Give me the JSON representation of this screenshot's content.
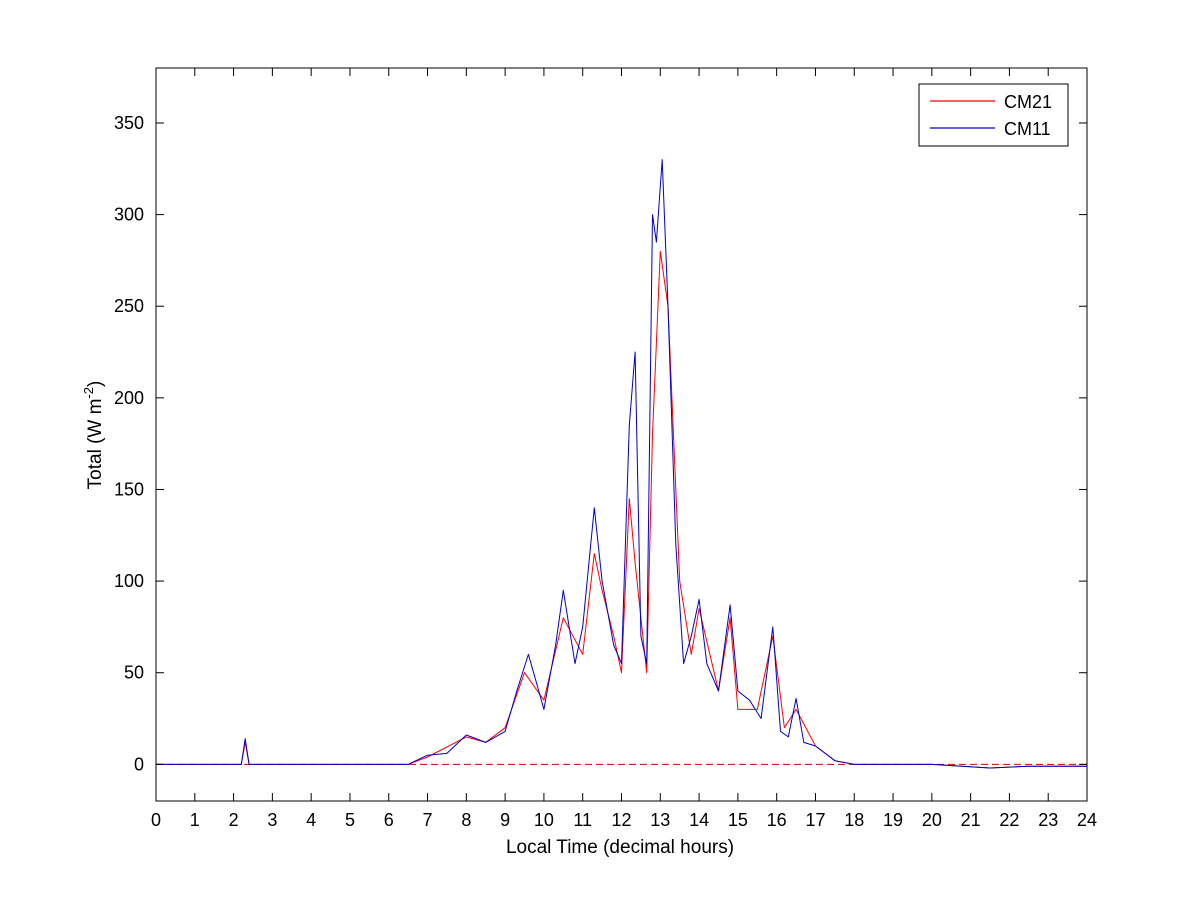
{
  "chart_data": {
    "type": "line",
    "xlabel": "Local Time (decimal hours)",
    "ylabel_main": "Total (W m",
    "ylabel_exp": "-2",
    "ylabel_tail": ")",
    "xlim": [
      0,
      24
    ],
    "ylim": [
      -20,
      380
    ],
    "xticks": [
      "0",
      "1",
      "2",
      "3",
      "4",
      "5",
      "6",
      "7",
      "8",
      "9",
      "10",
      "11",
      "12",
      "13",
      "14",
      "15",
      "16",
      "17",
      "18",
      "19",
      "20",
      "21",
      "22",
      "23",
      "24"
    ],
    "yticks": [
      "0",
      "50",
      "100",
      "150",
      "200",
      "250",
      "300",
      "350"
    ],
    "grid": false,
    "legend_position": "top-right",
    "reference_line": {
      "y": 0,
      "style": "dashed",
      "color": "#cc0000"
    },
    "series": [
      {
        "name": "CM21",
        "color": "#ff0000",
        "x": [
          0,
          2.2,
          2.3,
          2.4,
          6.5,
          7.0,
          8.0,
          8.5,
          9.0,
          9.5,
          10.0,
          10.5,
          11.0,
          11.3,
          11.5,
          11.8,
          12.0,
          12.2,
          12.35,
          12.5,
          12.65,
          12.8,
          13.0,
          13.2,
          13.5,
          13.8,
          14.0,
          14.5,
          14.8,
          15.0,
          15.5,
          15.9,
          16.2,
          16.5,
          17.0,
          17.5,
          18.0,
          20.0,
          21.5,
          22.5,
          24.0
        ],
        "y": [
          0,
          0,
          12,
          0,
          0,
          4,
          15,
          12,
          20,
          50,
          35,
          80,
          60,
          115,
          95,
          70,
          50,
          145,
          110,
          80,
          50,
          180,
          280,
          250,
          100,
          60,
          85,
          40,
          80,
          30,
          30,
          70,
          20,
          30,
          10,
          2,
          0,
          0,
          -2,
          -1,
          -1
        ]
      },
      {
        "name": "CM11",
        "color": "#0000cc",
        "x": [
          0,
          2.2,
          2.3,
          2.4,
          6.5,
          7.0,
          7.5,
          8.0,
          8.5,
          9.0,
          9.3,
          9.6,
          9.8,
          10.0,
          10.3,
          10.5,
          10.8,
          11.0,
          11.3,
          11.5,
          11.8,
          12.0,
          12.2,
          12.35,
          12.5,
          12.65,
          12.8,
          12.9,
          13.05,
          13.2,
          13.4,
          13.6,
          13.8,
          14.0,
          14.2,
          14.5,
          14.8,
          15.0,
          15.3,
          15.6,
          15.9,
          16.1,
          16.3,
          16.5,
          16.7,
          17.0,
          17.5,
          18.0,
          20.0,
          21.5,
          22.5,
          24.0
        ],
        "y": [
          0,
          0,
          14,
          0,
          0,
          5,
          6,
          16,
          12,
          18,
          40,
          60,
          45,
          30,
          65,
          95,
          55,
          75,
          140,
          100,
          65,
          55,
          185,
          225,
          70,
          55,
          300,
          285,
          330,
          250,
          120,
          55,
          70,
          90,
          55,
          40,
          87,
          40,
          35,
          25,
          75,
          18,
          15,
          36,
          12,
          10,
          2,
          0,
          0,
          -2,
          -1,
          -1
        ]
      }
    ]
  }
}
